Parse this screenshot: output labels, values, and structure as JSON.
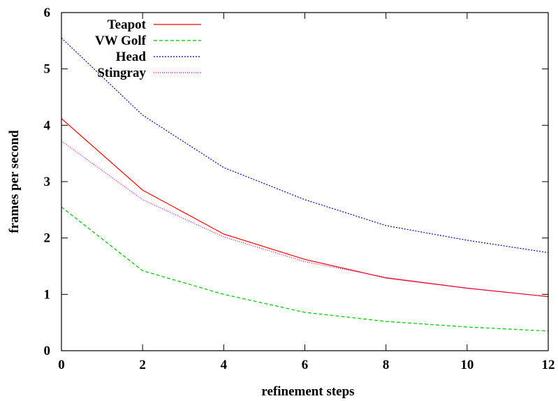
{
  "chart_data": {
    "type": "line",
    "title": "",
    "xlabel": "refinement steps",
    "ylabel": "frames per second",
    "xlim": [
      0,
      12
    ],
    "ylim": [
      0,
      6
    ],
    "xticks": [
      0,
      2,
      4,
      6,
      8,
      10,
      12
    ],
    "yticks": [
      0,
      1,
      2,
      3,
      4,
      5,
      6
    ],
    "xtick_labels": [
      "0",
      "2",
      "4",
      "6",
      "8",
      "10",
      "12"
    ],
    "ytick_labels": [
      "0",
      "1",
      "2",
      "3",
      "4",
      "5",
      "6"
    ],
    "grid": false,
    "legend_position": "top-left",
    "x": [
      0,
      2,
      4,
      6,
      8,
      10,
      12
    ],
    "series": [
      {
        "name": "Teapot",
        "color": "#ff0000",
        "dash": "solid",
        "values": [
          4.12,
          2.85,
          2.07,
          1.62,
          1.29,
          1.11,
          0.96
        ]
      },
      {
        "name": "VW Golf",
        "color": "#00c000",
        "dash": "dashed",
        "values": [
          2.55,
          1.42,
          1.0,
          0.68,
          0.52,
          0.42,
          0.35
        ]
      },
      {
        "name": "Head",
        "color": "#0000c0",
        "dash": "dotted",
        "values": [
          5.55,
          4.18,
          3.25,
          2.68,
          2.22,
          1.96,
          1.74
        ]
      },
      {
        "name": "Stingray",
        "color": "#c000c0",
        "dash": "fine-dotted",
        "values": [
          3.72,
          2.68,
          2.02,
          1.58,
          1.3,
          1.11,
          0.96
        ]
      }
    ]
  }
}
